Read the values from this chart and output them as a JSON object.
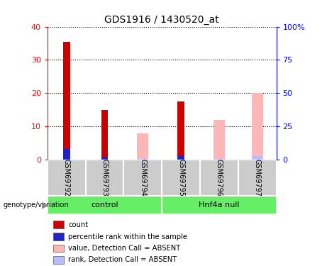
{
  "title": "GDS1916 / 1430520_at",
  "samples": [
    "GSM69792",
    "GSM69793",
    "GSM69794",
    "GSM69795",
    "GSM69796",
    "GSM69797"
  ],
  "count_values": [
    35.5,
    15.0,
    0,
    17.5,
    0,
    0
  ],
  "percentile_values": [
    8.0,
    2.0,
    0,
    2.5,
    0,
    0
  ],
  "absent_value_values": [
    0,
    0,
    8.0,
    0,
    12.0,
    20.0
  ],
  "absent_rank_values": [
    0,
    0,
    0.5,
    0,
    0.5,
    2.5
  ],
  "ylim_left": [
    0,
    40
  ],
  "ylim_right": [
    0,
    100
  ],
  "yticks_left": [
    0,
    10,
    20,
    30,
    40
  ],
  "yticks_right": [
    0,
    25,
    50,
    75,
    100
  ],
  "ytick_labels_right": [
    "0",
    "25",
    "50",
    "75",
    "100%"
  ],
  "count_color": "#cc0000",
  "percentile_color": "#2222cc",
  "absent_value_color": "#ffb6b6",
  "absent_rank_color": "#bbbbff",
  "group_bg": "#66ee66",
  "label_bg": "#cccccc",
  "legend_items": [
    {
      "color": "#cc0000",
      "label": "count"
    },
    {
      "color": "#2222cc",
      "label": "percentile rank within the sample"
    },
    {
      "color": "#ffb6b6",
      "label": "value, Detection Call = ABSENT"
    },
    {
      "color": "#bbbbff",
      "label": "rank, Detection Call = ABSENT"
    }
  ],
  "genotype_label": "genotype/variation",
  "control_label": "control",
  "hnf4a_label": "Hnf4a null"
}
